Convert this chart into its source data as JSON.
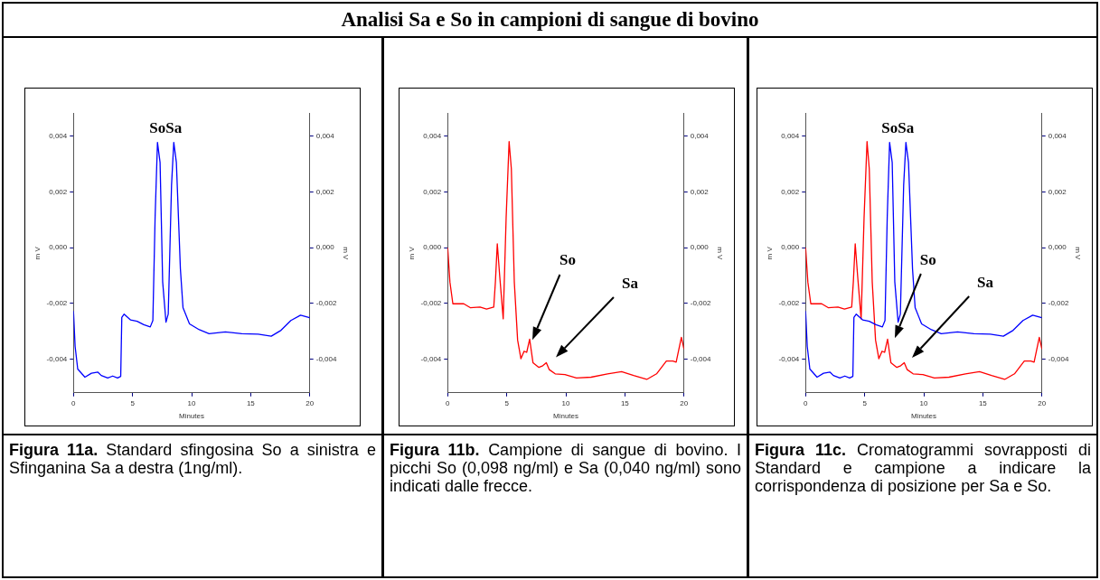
{
  "chart_data": [
    {
      "type": "other",
      "title": "Analisi Sa e So in campioni di sangue di bovino"
    },
    {
      "type": "line",
      "xlabel": "Minutes",
      "ylabel": "m V",
      "y2label": "m V",
      "xlim": [
        0,
        20
      ],
      "xticks": [
        0,
        5,
        10,
        15,
        20
      ],
      "ylim": [
        -0.0052,
        0.0048
      ],
      "yticks": [
        {
          "value": -0.004,
          "label": "-0,004"
        },
        {
          "value": -0.002,
          "label": "-0,002"
        },
        {
          "value": 0,
          "label": "0,000"
        },
        {
          "value": 0.002,
          "label": "0,002"
        },
        {
          "value": 0.004,
          "label": "0,004"
        }
      ],
      "y2lim": [
        -0.0052,
        0.0048
      ],
      "y2ticks": [
        {
          "value": -0.004,
          "label": "-0,004"
        },
        {
          "value": -0.002,
          "label": "-0,002"
        },
        {
          "value": 0,
          "label": "0,000"
        },
        {
          "value": 0.002,
          "label": "0,002"
        },
        {
          "value": 0.004,
          "label": "0,004"
        }
      ],
      "series": [
        {
          "color": "#0000ff",
          "x": [
            0,
            0.14,
            0.36,
            0.97,
            1.52,
            2.07,
            2.35,
            2.9,
            3.32,
            3.73,
            4.0,
            4.09,
            4.29,
            4.84,
            5.39,
            5.95,
            6.5,
            6.72,
            6.91,
            7.11,
            7.33,
            7.55,
            7.83,
            8.02,
            8.3,
            8.49,
            8.71,
            9.05,
            9.27,
            9.82,
            10.65,
            11.48,
            12.86,
            14.25,
            15.63,
            16.74,
            17.57,
            18.4,
            19.22,
            19.92,
            20
          ],
          "values": [
            -0.00227,
            -0.00354,
            -0.00435,
            -0.00464,
            -0.0045,
            -0.00446,
            -0.00458,
            -0.00467,
            -0.0046,
            -0.00467,
            -0.00461,
            -0.0025,
            -0.00238,
            -0.00259,
            -0.00264,
            -0.00276,
            -0.00284,
            -0.00261,
            0.00109,
            0.00377,
            0.00305,
            -0.00123,
            -0.00267,
            -0.00238,
            0.00224,
            0.00377,
            0.00305,
            -0.00076,
            -0.00215,
            -0.00273,
            -0.00294,
            -0.00308,
            -0.00302,
            -0.00308,
            -0.0031,
            -0.00317,
            -0.00296,
            -0.00261,
            -0.00242,
            -0.0025,
            -0.00252
          ]
        }
      ],
      "annotations": [
        "So",
        "Sa",
        "Figura 11a.",
        "Standard sfingosina So a sinistra e Sfinganina Sa a destra (1ng/ml)."
      ]
    },
    {
      "type": "line",
      "xlabel": "Minutes",
      "ylabel": "m V",
      "y2label": "m V",
      "xlim": [
        0,
        20
      ],
      "xticks": [
        0,
        5,
        10,
        15,
        20
      ],
      "ylim": [
        -0.0052,
        0.0048
      ],
      "yticks": [
        {
          "value": -0.004,
          "label": "-0,004"
        },
        {
          "value": -0.002,
          "label": "-0,002"
        },
        {
          "value": 0,
          "label": "0,000"
        },
        {
          "value": 0.002,
          "label": "0,002"
        },
        {
          "value": 0.004,
          "label": "0,004"
        }
      ],
      "y2lim": [
        -0.0052,
        0.0048
      ],
      "y2ticks": [
        {
          "value": -0.004,
          "label": "-0,004"
        },
        {
          "value": -0.002,
          "label": "-0,002"
        },
        {
          "value": 0,
          "label": "0,000"
        },
        {
          "value": 0.002,
          "label": "0,002"
        },
        {
          "value": 0.004,
          "label": "0,004"
        }
      ],
      "series": [
        {
          "color": "#ff0000",
          "x": [
            0,
            0.19,
            0.44,
            1.36,
            1.91,
            2.74,
            3.29,
            3.9,
            4.04,
            4.2,
            4.4,
            4.7,
            4.95,
            5.2,
            5.39,
            5.64,
            5.92,
            6.2,
            6.47,
            6.69,
            6.94,
            7.22,
            7.72,
            8.05,
            8.35,
            8.6,
            9.1,
            9.93,
            10.9,
            12.14,
            13.53,
            14.72,
            15.74,
            16.85,
            17.68,
            18.51,
            19.06,
            19.34,
            19.78,
            20
          ],
          "values": [
            0,
            -0.00123,
            -0.00201,
            -0.00201,
            -0.00215,
            -0.00213,
            -0.0022,
            -0.00213,
            -0.00123,
            0.00014,
            -0.00099,
            -0.00255,
            0.00109,
            0.0038,
            0.00282,
            -0.00123,
            -0.00331,
            -0.00398,
            -0.00371,
            -0.00375,
            -0.00328,
            -0.00412,
            -0.00429,
            -0.00423,
            -0.00412,
            -0.00437,
            -0.00452,
            -0.00455,
            -0.00467,
            -0.00464,
            -0.00452,
            -0.00444,
            -0.00458,
            -0.00472,
            -0.00452,
            -0.00406,
            -0.00406,
            -0.0041,
            -0.00321,
            -0.00363
          ]
        }
      ],
      "annotations": [
        "So",
        "Sa",
        "Figura 11b.",
        "Campione di sangue di bovino. I picchi So (0,098 ng/ml) e Sa (0,040 ng/ml) sono indicati dalle frecce."
      ]
    },
    {
      "type": "line",
      "xlabel": "Minutes",
      "ylabel": "m V",
      "y2label": "m V",
      "xlim": [
        0,
        20
      ],
      "xticks": [
        0,
        5,
        10,
        15,
        20
      ],
      "ylim": [
        -0.0052,
        0.0048
      ],
      "yticks": [
        {
          "value": -0.004,
          "label": "-0,004"
        },
        {
          "value": -0.002,
          "label": "-0,002"
        },
        {
          "value": 0,
          "label": "0,000"
        },
        {
          "value": 0.002,
          "label": "0,002"
        },
        {
          "value": 0.004,
          "label": "0,004"
        }
      ],
      "y2lim": [
        -0.0052,
        0.0048
      ],
      "y2ticks": [
        {
          "value": -0.004,
          "label": "-0,004"
        },
        {
          "value": -0.002,
          "label": "-0,002"
        },
        {
          "value": 0,
          "label": "0,000"
        },
        {
          "value": 0.002,
          "label": "0,002"
        },
        {
          "value": 0.004,
          "label": "0,004"
        }
      ],
      "series": [
        {
          "color": "#0000ff",
          "x": [
            0,
            0.14,
            0.36,
            0.97,
            1.52,
            2.07,
            2.35,
            2.9,
            3.32,
            3.73,
            4.0,
            4.09,
            4.29,
            4.84,
            5.39,
            5.95,
            6.5,
            6.72,
            6.91,
            7.11,
            7.33,
            7.55,
            7.83,
            8.02,
            8.3,
            8.49,
            8.71,
            9.05,
            9.27,
            9.82,
            10.65,
            11.48,
            12.86,
            14.25,
            15.63,
            16.74,
            17.57,
            18.4,
            19.22,
            19.92,
            20
          ],
          "values": [
            -0.00227,
            -0.00354,
            -0.00435,
            -0.00464,
            -0.0045,
            -0.00446,
            -0.00458,
            -0.00467,
            -0.0046,
            -0.00467,
            -0.00461,
            -0.0025,
            -0.00238,
            -0.00259,
            -0.00264,
            -0.00276,
            -0.00284,
            -0.00261,
            0.00109,
            0.00377,
            0.00305,
            -0.00123,
            -0.00267,
            -0.00238,
            0.00224,
            0.00377,
            0.00305,
            -0.00076,
            -0.00215,
            -0.00273,
            -0.00294,
            -0.00308,
            -0.00302,
            -0.00308,
            -0.0031,
            -0.00317,
            -0.00296,
            -0.00261,
            -0.00242,
            -0.0025,
            -0.00252
          ]
        },
        {
          "color": "#ff0000",
          "x": [
            0,
            0.19,
            0.44,
            1.36,
            1.91,
            2.74,
            3.29,
            3.9,
            4.04,
            4.2,
            4.4,
            4.7,
            4.95,
            5.2,
            5.39,
            5.64,
            5.92,
            6.2,
            6.47,
            6.69,
            6.94,
            7.22,
            7.72,
            8.05,
            8.35,
            8.6,
            9.1,
            9.93,
            10.9,
            12.14,
            13.53,
            14.72,
            15.74,
            16.85,
            17.68,
            18.51,
            19.06,
            19.34,
            19.78,
            20
          ],
          "values": [
            0,
            -0.00123,
            -0.00201,
            -0.00201,
            -0.00215,
            -0.00213,
            -0.0022,
            -0.00213,
            -0.00123,
            0.00014,
            -0.00099,
            -0.00255,
            0.00109,
            0.0038,
            0.00282,
            -0.00123,
            -0.00331,
            -0.00398,
            -0.00371,
            -0.00375,
            -0.00328,
            -0.00412,
            -0.00429,
            -0.00423,
            -0.00412,
            -0.00437,
            -0.00452,
            -0.00455,
            -0.00467,
            -0.00464,
            -0.00452,
            -0.00444,
            -0.00458,
            -0.00472,
            -0.00452,
            -0.00406,
            -0.00406,
            -0.0041,
            -0.00321,
            -0.00363
          ]
        }
      ],
      "annotations": [
        "So",
        "Sa",
        "So",
        "Sa",
        "Figura 11c.",
        "Cromatogrammi sovrapposti di Standard e campione a indicare la corrispondenza di posizione per Sa e So."
      ]
    }
  ]
}
